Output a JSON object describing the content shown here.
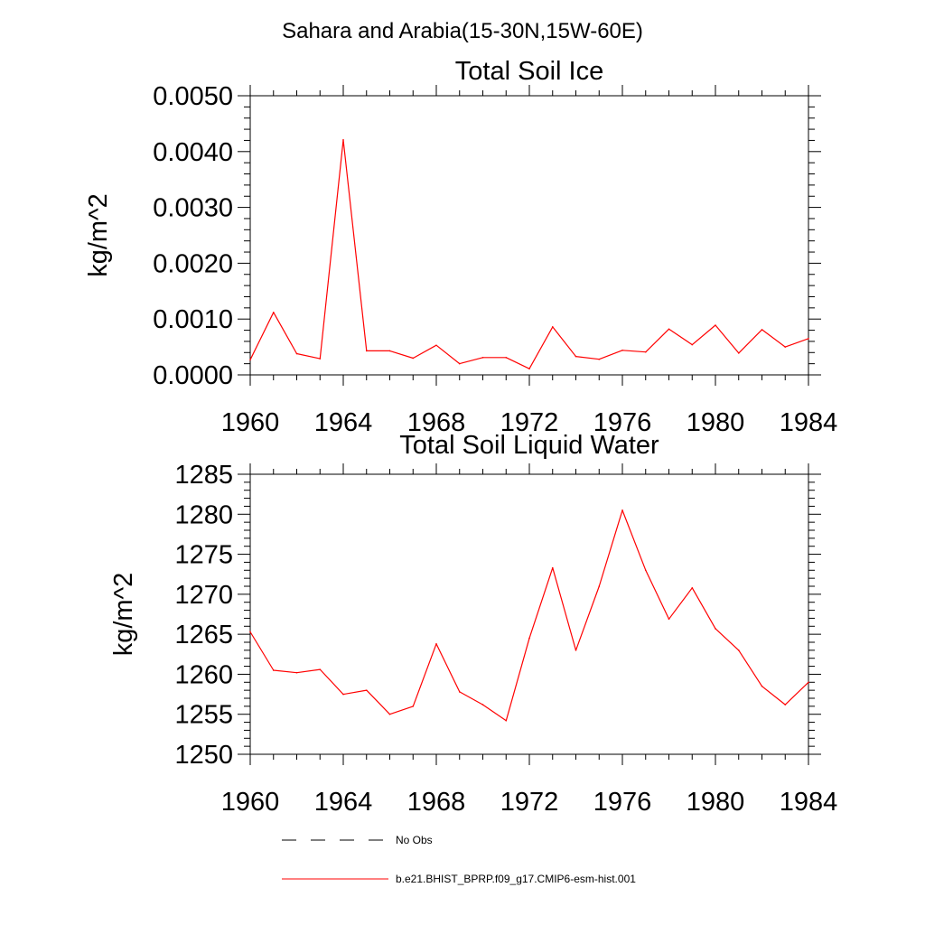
{
  "figure": {
    "suptitle": "Sahara and Arabia(15-30N,15W-60E)"
  },
  "legend": {
    "entries": [
      {
        "label": "No Obs",
        "color": "#000000",
        "dash": "dashed"
      },
      {
        "label": "b.e21.BHIST_BPRP.f09_g17.CMIP6-esm-hist.001",
        "color": "#ff0000",
        "dash": "solid"
      }
    ]
  },
  "chart_data": [
    {
      "type": "line",
      "title": "Total Soil Ice",
      "xlabel": "",
      "ylabel": "kg/m^2",
      "xlim": [
        1960,
        1984
      ],
      "ylim": [
        0,
        0.005
      ],
      "x_ticks": [
        1960,
        1964,
        1968,
        1972,
        1976,
        1980,
        1984
      ],
      "y_ticks": [
        0,
        0.001,
        0.002,
        0.003,
        0.004,
        0.005
      ],
      "y_tick_labels": [
        "0.0000",
        "0.0010",
        "0.0020",
        "0.0030",
        "0.0040",
        "0.0050"
      ],
      "grid": false,
      "x": [
        1960,
        1961,
        1962,
        1963,
        1964,
        1965,
        1966,
        1967,
        1968,
        1969,
        1970,
        1971,
        1972,
        1973,
        1974,
        1975,
        1976,
        1977,
        1978,
        1979,
        1980,
        1981,
        1982,
        1983,
        1984
      ],
      "series": [
        {
          "name": "b.e21.BHIST_BPRP.f09_g17.CMIP6-esm-hist.001",
          "color": "#ff0000",
          "values": [
            0.00027,
            0.00112,
            0.00038,
            0.00029,
            0.00421,
            0.00043,
            0.00043,
            0.0003,
            0.00053,
            0.0002,
            0.00031,
            0.00031,
            0.00011,
            0.00086,
            0.00033,
            0.00028,
            0.00044,
            0.00041,
            0.00082,
            0.00054,
            0.00089,
            0.00039,
            0.00081,
            0.0005,
            0.00065
          ]
        }
      ]
    },
    {
      "type": "line",
      "title": "Total Soil Liquid Water",
      "xlabel": "",
      "ylabel": "kg/m^2",
      "xlim": [
        1960,
        1984
      ],
      "ylim": [
        1250,
        1285
      ],
      "x_ticks": [
        1960,
        1964,
        1968,
        1972,
        1976,
        1980,
        1984
      ],
      "y_ticks": [
        1250,
        1255,
        1260,
        1265,
        1270,
        1275,
        1280,
        1285
      ],
      "y_tick_labels": [
        "1250",
        "1255",
        "1260",
        "1265",
        "1270",
        "1275",
        "1280",
        "1285"
      ],
      "grid": false,
      "x": [
        1960,
        1961,
        1962,
        1963,
        1964,
        1965,
        1966,
        1967,
        1968,
        1969,
        1970,
        1971,
        1972,
        1973,
        1974,
        1975,
        1976,
        1977,
        1978,
        1979,
        1980,
        1981,
        1982,
        1983,
        1984
      ],
      "series": [
        {
          "name": "b.e21.BHIST_BPRP.f09_g17.CMIP6-esm-hist.001",
          "color": "#ff0000",
          "values": [
            1265.3,
            1260.5,
            1260.2,
            1260.6,
            1257.5,
            1258.0,
            1255.0,
            1256.0,
            1263.8,
            1257.8,
            1256.2,
            1254.2,
            1264.5,
            1273.3,
            1263.0,
            1271.0,
            1280.5,
            1273.0,
            1266.9,
            1270.8,
            1265.7,
            1263.0,
            1258.5,
            1256.2,
            1259.0
          ]
        }
      ]
    }
  ]
}
